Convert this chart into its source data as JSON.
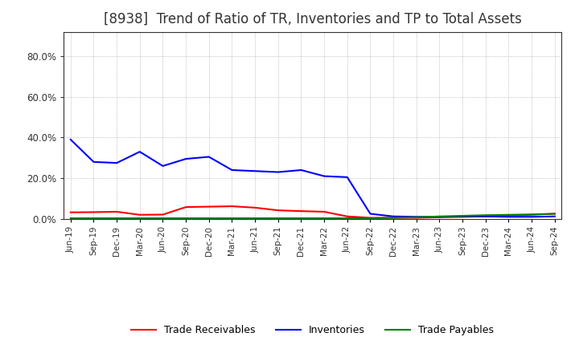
{
  "title": "[8938]  Trend of Ratio of TR, Inventories and TP to Total Assets",
  "x_labels": [
    "Jun-19",
    "Sep-19",
    "Dec-19",
    "Mar-20",
    "Jun-20",
    "Sep-20",
    "Dec-20",
    "Mar-21",
    "Jun-21",
    "Sep-21",
    "Dec-21",
    "Mar-22",
    "Jun-22",
    "Sep-22",
    "Dec-22",
    "Mar-23",
    "Jun-23",
    "Sep-23",
    "Dec-23",
    "Mar-24",
    "Jun-24",
    "Sep-24"
  ],
  "trade_receivables": [
    3.2,
    3.3,
    3.5,
    2.0,
    2.1,
    5.8,
    6.0,
    6.2,
    5.5,
    4.2,
    3.8,
    3.5,
    1.2,
    0.5,
    0.5,
    0.5,
    0.8,
    1.0,
    1.2,
    1.5,
    2.0,
    2.5
  ],
  "inventories": [
    39.0,
    28.0,
    27.5,
    33.0,
    26.0,
    29.5,
    30.5,
    24.0,
    23.5,
    23.0,
    24.0,
    21.0,
    20.5,
    2.5,
    1.2,
    1.0,
    1.0,
    1.2,
    1.2,
    1.0,
    1.0,
    1.2
  ],
  "trade_payables": [
    0.3,
    0.3,
    0.3,
    0.3,
    0.3,
    0.3,
    0.3,
    0.3,
    0.3,
    0.3,
    0.3,
    0.3,
    0.3,
    0.3,
    0.5,
    0.8,
    1.2,
    1.5,
    1.8,
    2.0,
    2.2,
    2.5
  ],
  "color_tr": "#FF0000",
  "color_inv": "#0000FF",
  "color_tp": "#008000",
  "ylim": [
    0,
    92
  ],
  "yticks": [
    0,
    20,
    40,
    60,
    80
  ],
  "background_color": "#FFFFFF",
  "grid_color": "#AAAAAA",
  "title_fontsize": 12,
  "legend_labels": [
    "Trade Receivables",
    "Inventories",
    "Trade Payables"
  ]
}
